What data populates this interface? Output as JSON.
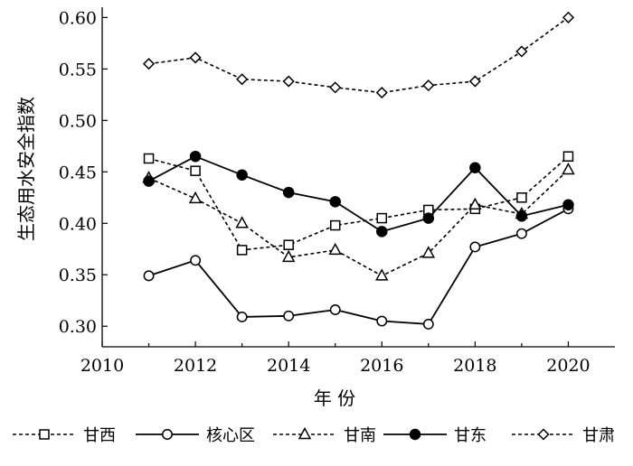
{
  "chart_data": {
    "type": "line",
    "title": "",
    "xlabel": "年 份",
    "ylabel": "生态用水安全指数",
    "xlim": [
      2010,
      2021
    ],
    "ylim": [
      0.28,
      0.61
    ],
    "xticks": [
      2010,
      2012,
      2014,
      2016,
      2018,
      2020
    ],
    "yticks": [
      "0.30",
      "0.35",
      "0.40",
      "0.45",
      "0.50",
      "0.55",
      "0.60"
    ],
    "grid": false,
    "legend_position": "bottom",
    "x": [
      2011,
      2012,
      2013,
      2014,
      2015,
      2016,
      2017,
      2018,
      2019,
      2020
    ],
    "series": [
      {
        "name": "甘西",
        "marker": "square-open",
        "line": "dashed",
        "values": [
          0.463,
          0.451,
          0.374,
          0.379,
          0.398,
          0.405,
          0.413,
          0.414,
          0.425,
          0.465
        ]
      },
      {
        "name": "核心区",
        "marker": "circle-open",
        "line": "solid",
        "values": [
          0.349,
          0.364,
          0.309,
          0.31,
          0.316,
          0.305,
          0.302,
          0.377,
          0.39,
          0.414
        ]
      },
      {
        "name": "甘南",
        "marker": "triangle-open",
        "line": "dashed",
        "values": [
          0.444,
          0.424,
          0.4,
          0.367,
          0.374,
          0.349,
          0.371,
          0.418,
          0.409,
          0.452
        ]
      },
      {
        "name": "甘东",
        "marker": "circle-filled",
        "line": "solid",
        "values": [
          0.441,
          0.465,
          0.447,
          0.43,
          0.421,
          0.392,
          0.405,
          0.454,
          0.407,
          0.418
        ]
      },
      {
        "name": "甘肃",
        "marker": "diamond-open",
        "line": "dashed",
        "values": [
          0.555,
          0.561,
          0.54,
          0.538,
          0.532,
          0.527,
          0.534,
          0.538,
          0.567,
          0.6
        ]
      }
    ]
  }
}
